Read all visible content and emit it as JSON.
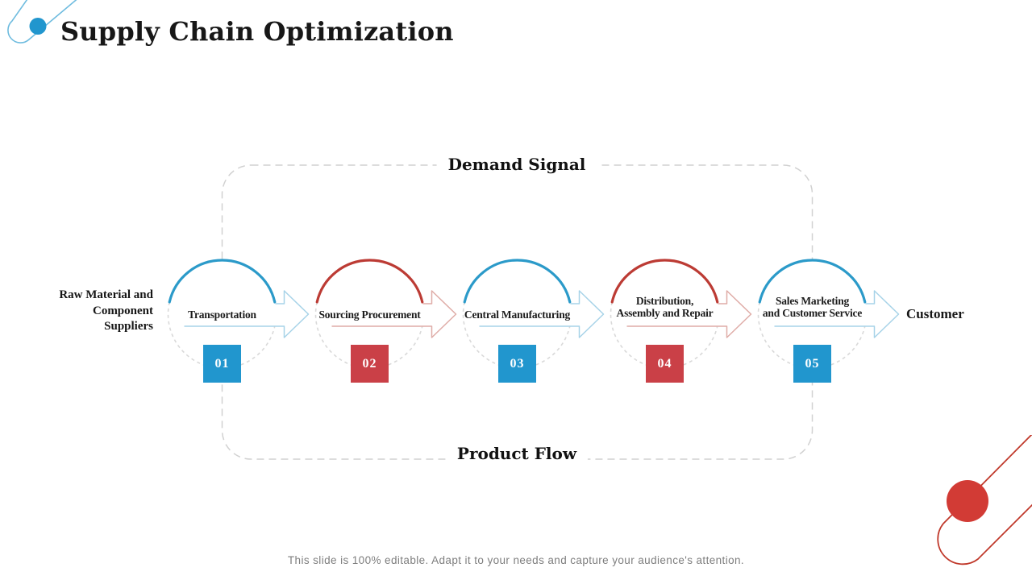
{
  "title": "Supply Chain Optimization",
  "diagram": {
    "top_label": "Demand Signal",
    "bottom_label": "Product Flow",
    "left_label_lines": [
      "Raw Material and",
      "Component",
      "Suppliers"
    ],
    "right_label": "Customer",
    "stages": [
      {
        "number": "01",
        "label_lines": [
          "Transportation"
        ],
        "scheme": "blue"
      },
      {
        "number": "02",
        "label_lines": [
          "Sourcing Procurement"
        ],
        "scheme": "red"
      },
      {
        "number": "03",
        "label_lines": [
          "Central Manufacturing"
        ],
        "scheme": "blue"
      },
      {
        "number": "04",
        "label_lines": [
          "Distribution,",
          "Assembly and Repair"
        ],
        "scheme": "red"
      },
      {
        "number": "05",
        "label_lines": [
          "Sales Marketing",
          "and Customer Service"
        ],
        "scheme": "blue"
      }
    ]
  },
  "colors": {
    "blue_arc": "#2B9AC9",
    "blue_badge": "#2196CE",
    "red_arc": "#BC3B34",
    "red_badge": "#CA4047",
    "arrow_blue": "#A7D3E8",
    "arrow_red": "#DFACA7",
    "circle_dash_gray": "#D9D9D9",
    "boundary_dash_gray": "#D1D1D1",
    "decoration_blue_line": "#6FBCDF",
    "decoration_blue_dot": "#2196CE",
    "decoration_red_line": "#C0392B",
    "decoration_red_dot": "#D23B35"
  },
  "footer": {
    "text": "This slide is 100% editable. Adapt it to your needs and capture your audience's attention."
  }
}
